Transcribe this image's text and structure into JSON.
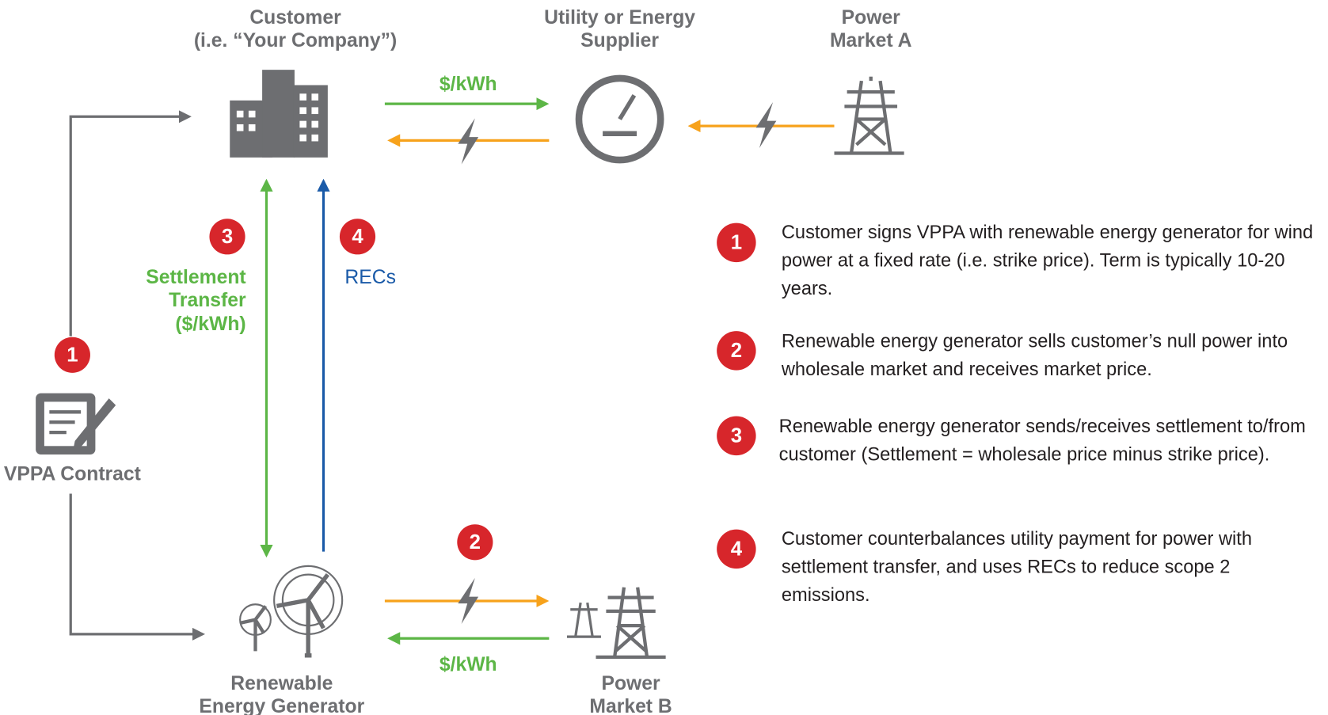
{
  "nodes": {
    "customer": {
      "label": [
        "Customer",
        "(i.e. “Your Company”)"
      ]
    },
    "utility": {
      "label": [
        "Utility or Energy",
        "Supplier"
      ]
    },
    "market_a": {
      "label": [
        "Power",
        "Market A"
      ]
    },
    "contract": {
      "label": [
        "VPPA Contract"
      ]
    },
    "generator": {
      "label": [
        "Renewable",
        "Energy Generator"
      ]
    },
    "market_b": {
      "label": [
        "Power",
        "Market B"
      ]
    }
  },
  "edges": {
    "top_payment": "$/kWh",
    "settlement": [
      "Settlement",
      "Transfer",
      "($/kWh)"
    ],
    "recs": "RECs",
    "bottom_payment": "$/kWh"
  },
  "badges": [
    "1",
    "2",
    "3",
    "4"
  ],
  "steps": [
    {
      "number": "1",
      "text": "Customer signs VPPA with renewable energy generator for wind power at a fixed rate (i.e. strike price). Term is typically 10-20 years."
    },
    {
      "number": "2",
      "text": "Renewable energy generator sells customer’s null power into wholesale market  and receives market price."
    },
    {
      "number": "3",
      "text": "Renewable energy generator sends/receives settlement to/from customer (Settlement = wholesale price minus strike price)."
    },
    {
      "number": "4",
      "text": "Customer counterbalances utility payment for power with settlement transfer, and uses RECs to reduce scope 2 emissions."
    }
  ]
}
